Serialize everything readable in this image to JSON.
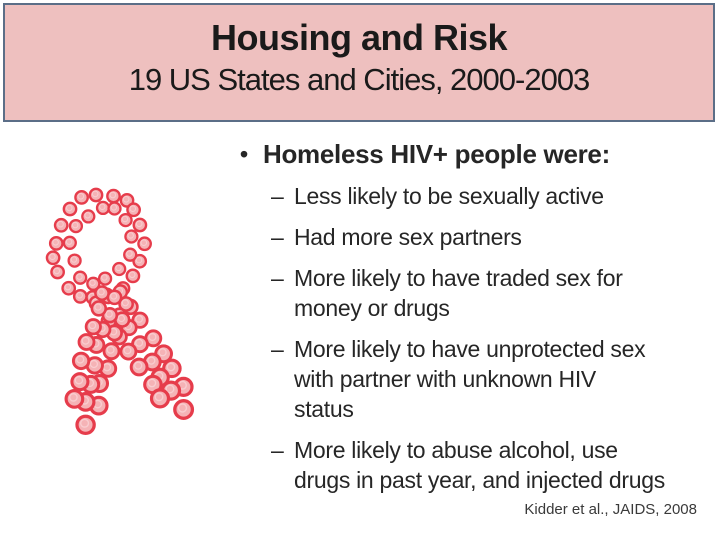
{
  "slide": {
    "title": "Housing and Risk",
    "subtitle": "19 US States and Cities, 2000-2003",
    "bullet_char": "•",
    "dash_char": "–",
    "main_bullet": "Homeless HIV+ people were:",
    "sub_bullets": [
      {
        "lines": [
          "Less likely to be sexually active"
        ]
      },
      {
        "lines": [
          "Had more sex partners"
        ]
      },
      {
        "lines": [
          "More likely to have traded sex for",
          "money or drugs"
        ]
      },
      {
        "lines": [
          "More likely to have unprotected sex",
          "with partner with unknown HIV",
          "status"
        ]
      },
      {
        "lines": [
          "More likely to abuse alcohol, use",
          "drugs in past year, and injected drugs"
        ]
      }
    ],
    "citation": "Kidder et al., JAIDS, 2008"
  },
  "icons": {
    "ribbon": "aids-red-ribbon-of-dotted-circles"
  },
  "colors": {
    "slide_bg": "#ffffff",
    "title_box_fill": "#eec0bf",
    "title_box_border": "#5b6e87",
    "title_text": "#1a1a1a",
    "body_text": "#262626",
    "citation_text": "#3a3a3a",
    "ribbon_ring": "#e63c4b",
    "ribbon_fill": "#f5b3b6",
    "ribbon_highlight": "#f9cdd0"
  }
}
